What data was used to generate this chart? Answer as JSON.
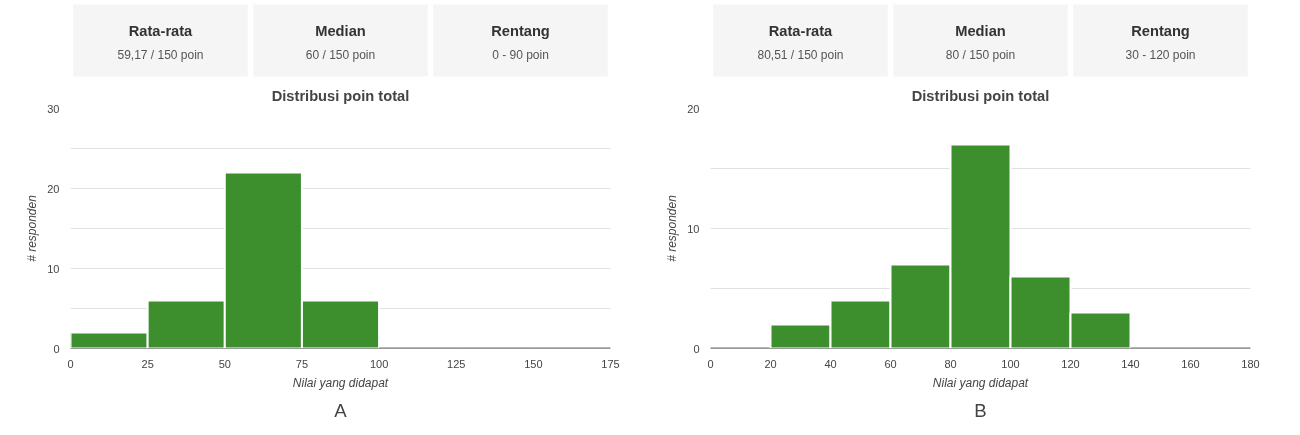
{
  "chart_data": [
    {
      "type": "other",
      "annotations": [
        "Rata-rata",
        "59,17 / 150 poin",
        "Median",
        "60 / 150 poin",
        "Rentang",
        "0 - 90 poin"
      ]
    },
    {
      "type": "histogram",
      "title": "Distribusi poin total",
      "xlabel": "Nilai yang didapat",
      "ylabel": "# responden",
      "color": "#3d8f2e",
      "bins": [
        0,
        25,
        50,
        75,
        100,
        125,
        150,
        175
      ],
      "values": [
        2,
        6,
        22,
        6,
        0,
        0,
        0
      ],
      "xlim": [
        0,
        175
      ],
      "xticks": [
        0,
        25,
        50,
        75,
        100,
        125,
        150,
        175
      ],
      "ylim": [
        0,
        30
      ],
      "yticks": [
        0,
        {
          "value": 5,
          "label": null
        },
        10,
        {
          "value": 15,
          "label": null
        },
        20,
        {
          "value": 25,
          "label": null
        },
        30
      ],
      "grid": "y",
      "annotations": [
        "A"
      ]
    },
    {
      "type": "other",
      "annotations": [
        "Rata-rata",
        "80,51 / 150 poin",
        "Median",
        "80 / 150 poin",
        "Rentang",
        "30 - 120 poin"
      ]
    },
    {
      "type": "histogram",
      "title": "Distribusi poin total",
      "xlabel": "Nilai yang didapat",
      "ylabel": "# responden",
      "color": "#3d8f2e",
      "bins": [
        0,
        20,
        40,
        60,
        80,
        100,
        120,
        140,
        160,
        180
      ],
      "values": [
        0,
        2,
        4,
        7,
        17,
        6,
        3,
        0,
        0
      ],
      "xlim": [
        0,
        180
      ],
      "xticks": [
        0,
        20,
        40,
        60,
        80,
        100,
        120,
        140,
        160,
        180
      ],
      "ylim": [
        0,
        20
      ],
      "yticks": [
        0,
        {
          "value": 5,
          "label": null
        },
        10,
        {
          "value": 15,
          "label": null
        },
        20
      ],
      "grid": "y",
      "annotations": [
        "B"
      ]
    }
  ]
}
